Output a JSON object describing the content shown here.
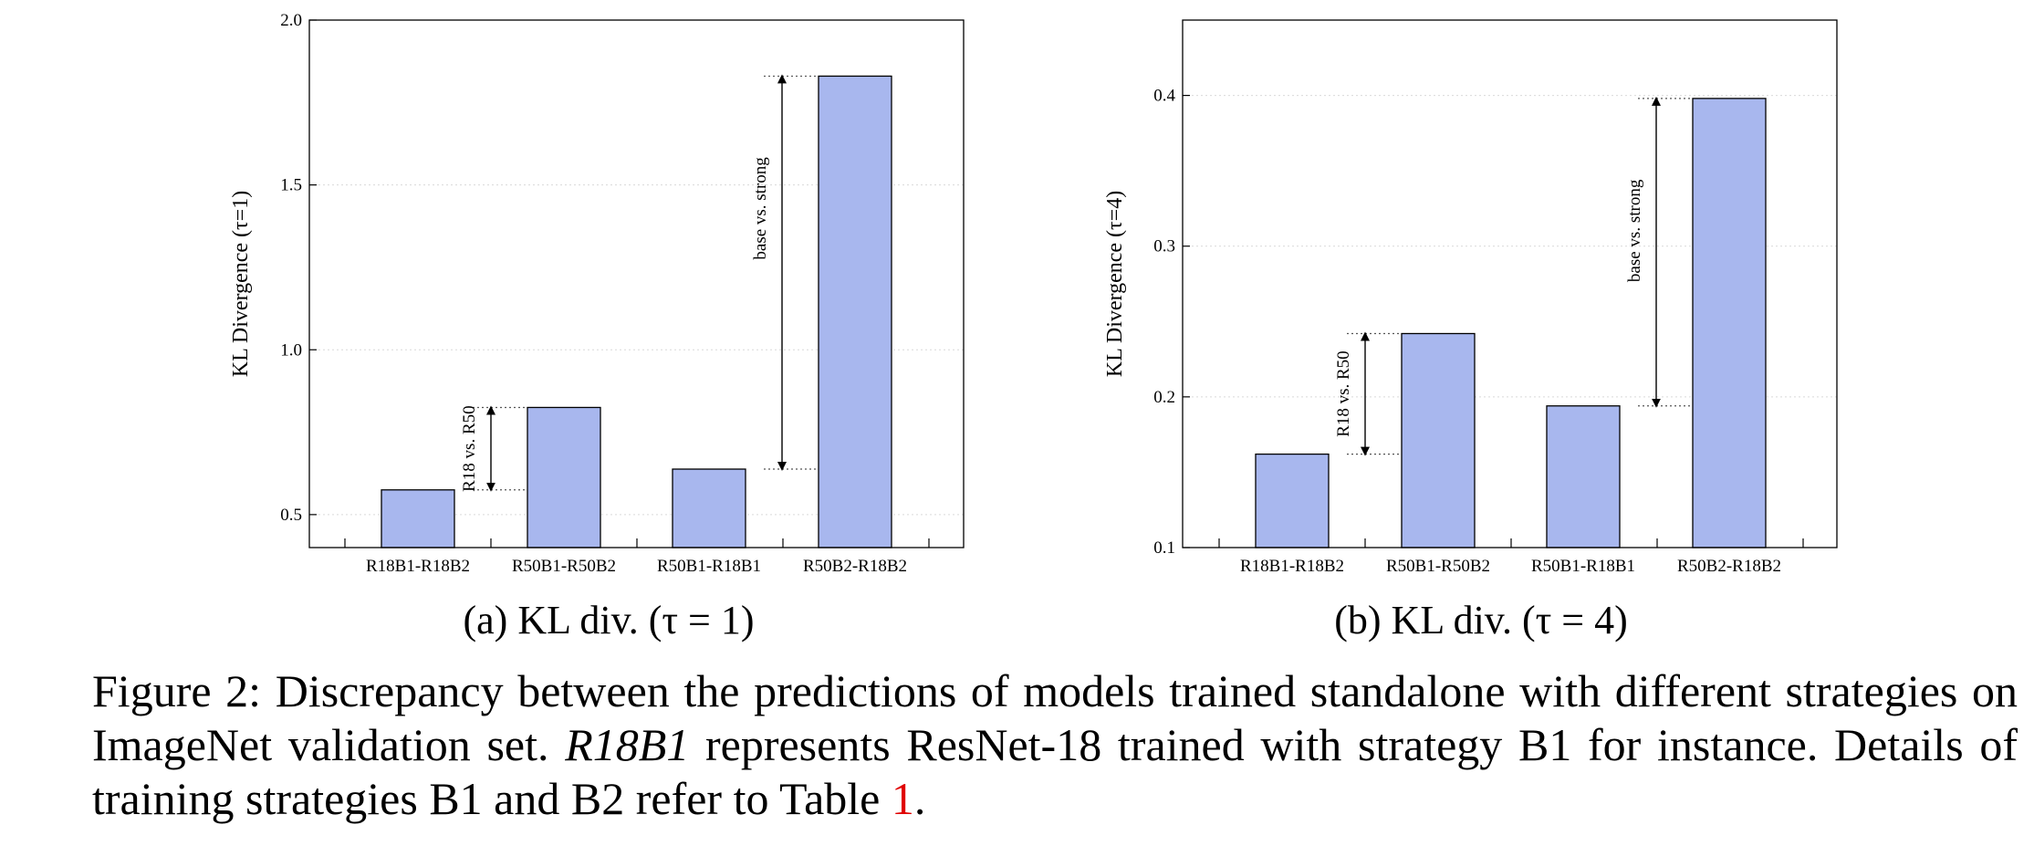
{
  "chart_data": [
    {
      "type": "bar",
      "categories": [
        "R18B1-R18B2",
        "R50B1-R50B2",
        "R50B1-R18B1",
        "R50B2-R18B2"
      ],
      "values": [
        0.575,
        0.825,
        0.638,
        1.83
      ],
      "ylabel": "KL Divergence (τ=1)",
      "ylim": [
        0.4,
        2.0
      ],
      "yticks": [
        "0.5",
        "1.0",
        "1.5",
        "2.0"
      ],
      "ytick_values": [
        0.5,
        1.0,
        1.5,
        2.0
      ],
      "bar_color": "#a8b7ee",
      "grid": true,
      "annotations": [
        {
          "label": "R18 vs. R50",
          "from_value": 0.575,
          "to_value": 0.825
        },
        {
          "label": "base vs. strong",
          "from_value": 0.638,
          "to_value": 1.83
        }
      ],
      "subcaption": {
        "prefix": "(a)",
        "text": "KL div. (τ = 1)"
      }
    },
    {
      "type": "bar",
      "categories": [
        "R18B1-R18B2",
        "R50B1-R50B2",
        "R50B1-R18B1",
        "R50B2-R18B2"
      ],
      "values": [
        0.162,
        0.242,
        0.194,
        0.398
      ],
      "ylabel": "KL Divergence (τ=4)",
      "ylim": [
        0.1,
        0.45
      ],
      "yticks": [
        "0.1",
        "0.2",
        "0.3",
        "0.4"
      ],
      "ytick_values": [
        0.1,
        0.2,
        0.3,
        0.4
      ],
      "bar_color": "#a8b7ee",
      "grid": true,
      "annotations": [
        {
          "label": "R18 vs. R50",
          "from_value": 0.162,
          "to_value": 0.242
        },
        {
          "label": "base vs. strong",
          "from_value": 0.194,
          "to_value": 0.398
        }
      ],
      "subcaption": {
        "prefix": "(b)",
        "text": "KL div. (τ = 4)"
      }
    }
  ],
  "caption": {
    "part1": "Figure 2: Discrepancy between the predictions of models trained standalone with different strategies on ImageNet validation set. ",
    "italic": "R18B1",
    "part2": " represents ResNet-18 trained with strategy B1 for instance. Details of training strategies B1 and B2 refer to Table ",
    "ref": "1",
    "part3": "."
  }
}
